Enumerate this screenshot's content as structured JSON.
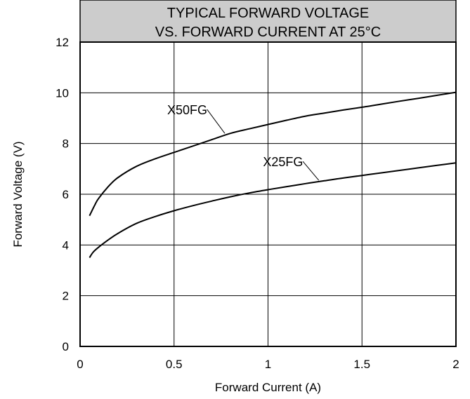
{
  "chart_data": {
    "type": "line",
    "title": [
      "TYPICAL FORWARD VOLTAGE",
      "VS. FORWARD CURRENT AT 25°C"
    ],
    "title_bg": "#cccccc",
    "xlabel": "Forward Current (A)",
    "ylabel": "Forward Voltage (V)",
    "xlim": [
      0,
      2
    ],
    "ylim": [
      0,
      12
    ],
    "xticks": [
      0,
      0.5,
      1,
      1.5,
      2
    ],
    "xtick_labels": [
      "0",
      "0.5",
      "1",
      "1.5",
      "2"
    ],
    "yticks": [
      0,
      2,
      4,
      6,
      8,
      10,
      12
    ],
    "ytick_labels": [
      "0",
      "2",
      "4",
      "6",
      "8",
      "10",
      "12"
    ],
    "grid": true,
    "series": [
      {
        "name": "X50FG",
        "x": [
          0.05,
          0.08,
          0.1,
          0.15,
          0.2,
          0.3,
          0.4,
          0.5,
          0.6,
          0.7,
          0.8,
          0.9,
          1.0,
          1.1,
          1.2,
          1.3,
          1.4,
          1.5,
          1.6,
          1.7,
          1.8,
          1.9,
          2.0
        ],
        "y": [
          5.15,
          5.6,
          5.85,
          6.3,
          6.65,
          7.1,
          7.4,
          7.65,
          7.9,
          8.15,
          8.4,
          8.58,
          8.75,
          8.92,
          9.08,
          9.2,
          9.32,
          9.43,
          9.55,
          9.67,
          9.78,
          9.9,
          10.02
        ]
      },
      {
        "name": "X25FG",
        "x": [
          0.05,
          0.07,
          0.1,
          0.15,
          0.2,
          0.3,
          0.4,
          0.5,
          0.6,
          0.7,
          0.8,
          0.9,
          1.0,
          1.1,
          1.2,
          1.3,
          1.4,
          1.5,
          1.6,
          1.7,
          1.8,
          1.9,
          2.0
        ],
        "y": [
          3.5,
          3.72,
          3.92,
          4.2,
          4.45,
          4.85,
          5.12,
          5.35,
          5.55,
          5.73,
          5.9,
          6.05,
          6.18,
          6.3,
          6.42,
          6.53,
          6.64,
          6.74,
          6.84,
          6.94,
          7.04,
          7.14,
          7.24
        ]
      }
    ],
    "annotations": [
      {
        "text": "X50FG",
        "x": 0.57,
        "y": 9.15,
        "target_x": 0.77,
        "target_y": 8.4
      },
      {
        "text": "X25FG",
        "x": 1.08,
        "y": 7.1,
        "target_x": 1.27,
        "target_y": 6.55
      }
    ]
  }
}
